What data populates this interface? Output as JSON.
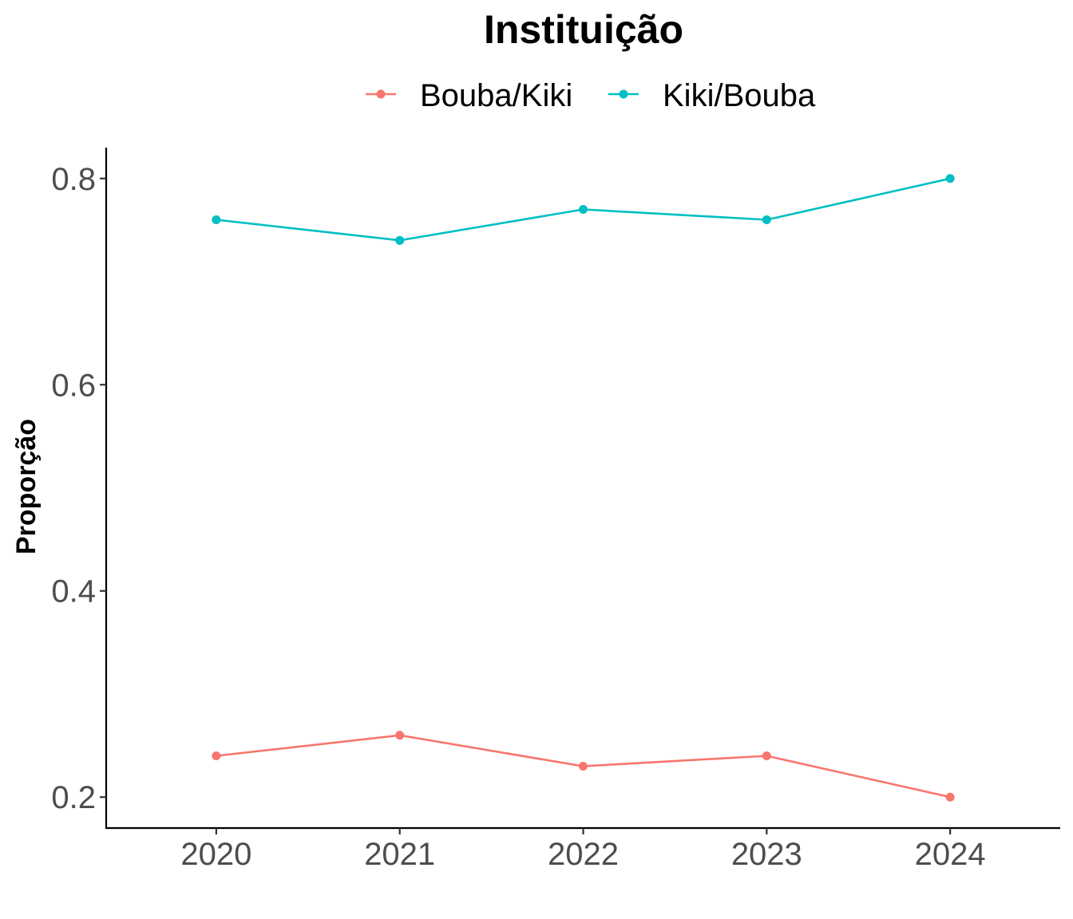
{
  "chart_data": {
    "type": "line",
    "title": "",
    "xlabel": "",
    "ylabel": "Proporção",
    "legend": {
      "title": "Instituição",
      "position": "top"
    },
    "x": [
      2020,
      2021,
      2022,
      2023,
      2024
    ],
    "x_tick_labels": [
      "2020",
      "2021",
      "2022",
      "2023",
      "2024"
    ],
    "y_ticks": [
      0.2,
      0.4,
      0.6,
      0.8
    ],
    "y_tick_labels": [
      "0.2",
      "0.4",
      "0.6",
      "0.8"
    ],
    "xlim": [
      2019.4,
      2024.6
    ],
    "ylim": [
      0.17,
      0.83
    ],
    "grid": false,
    "series": [
      {
        "name": "Bouba/Kiki",
        "color": "#F8766D",
        "values": [
          0.24,
          0.26,
          0.23,
          0.24,
          0.2
        ]
      },
      {
        "name": "Kiki/Bouba",
        "color": "#00BFC4",
        "values": [
          0.76,
          0.74,
          0.77,
          0.76,
          0.8
        ]
      }
    ]
  }
}
